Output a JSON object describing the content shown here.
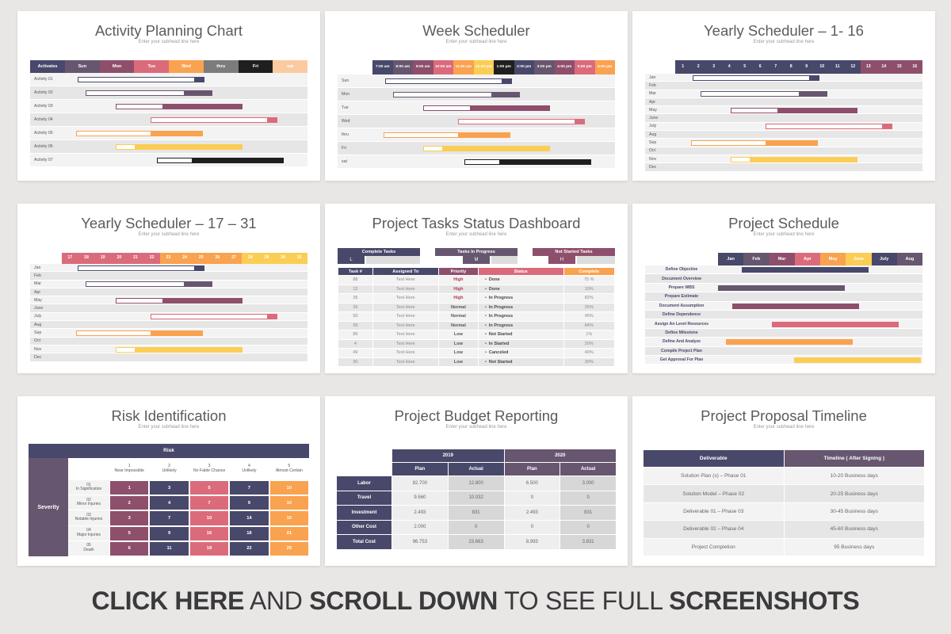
{
  "subhead": "Enter your subhead line here",
  "colors": {
    "navy": "#48486a",
    "purple": "#67566f",
    "plum": "#8e4f6c",
    "pink": "#db6b7b",
    "orange": "#f9a24f",
    "yellow": "#fbcd55",
    "peach": "#fccaa0",
    "gray": "#7c7c7c",
    "black": "#1f1f1f"
  },
  "s1": {
    "title": "Activity Planning Chart",
    "header": [
      "Activates",
      "Sun",
      "Mon",
      "Tue",
      "Wed",
      "thru",
      "Fri",
      "sat"
    ],
    "rows": [
      "Activity 01",
      "Activity 02",
      "Activity 03",
      "Activity 04",
      "Activity 05",
      "Activity 06",
      "Activity 07"
    ]
  },
  "s2": {
    "title": "Week Scheduler",
    "header": [
      "7:00 am",
      "8:00 am",
      "9:00 am",
      "10:00 am",
      "11:00 am",
      "12:00 pm",
      "1:00 pm",
      "2:00 pm",
      "3:00 pm",
      "4:00 pm",
      "5:00 pm",
      "6:00 pm"
    ],
    "rows": [
      "Sun",
      "Mon",
      "Tue",
      "Wed",
      "thru",
      "Fri",
      "sat"
    ]
  },
  "s3": {
    "title": "Yearly Scheduler – 1- 16",
    "header": [
      "1",
      "2",
      "3",
      "4",
      "5",
      "6",
      "7",
      "8",
      "9",
      "10",
      "11",
      "12",
      "13",
      "14",
      "15",
      "16"
    ],
    "rows": [
      "Jan",
      "Feb",
      "Mar",
      "Apr",
      "May",
      "June",
      "July",
      "Aug",
      "Sep",
      "Oct",
      "Nov",
      "Dec"
    ]
  },
  "s4": {
    "title": "Yearly Scheduler – 17 – 31",
    "header": [
      "17",
      "18",
      "19",
      "20",
      "21",
      "22",
      "23",
      "24",
      "25",
      "26",
      "27",
      "28",
      "29",
      "30",
      "31"
    ],
    "rows": [
      "Jan",
      "Feb",
      "Mar",
      "Apr",
      "May",
      "June",
      "July",
      "Aug",
      "Sep",
      "Oct",
      "Nov",
      "Dec"
    ]
  },
  "s5": {
    "title": "Project Tasks Status Dashboard",
    "summary": [
      {
        "label": "Complete Tasks",
        "value": "L"
      },
      {
        "label": "Tasks In Progress",
        "value": "M"
      },
      {
        "label": "Not Started Tasks",
        "value": "H"
      }
    ],
    "columns": [
      "Task #",
      "Assigned To",
      "Priority",
      "Status",
      "Complete"
    ],
    "rows": [
      [
        "88",
        "Text Here",
        "High",
        "Done",
        "75 %"
      ],
      [
        "12",
        "Text Here",
        "High",
        "Done",
        "10%"
      ],
      [
        "35",
        "Text Here",
        "High",
        "In Progress",
        "82%"
      ],
      [
        "39",
        "Text Here",
        "Normal",
        "In Progress",
        "25%"
      ],
      [
        "50",
        "Text Here",
        "Normal",
        "In Progress",
        "45%"
      ],
      [
        "99",
        "Text Here",
        "Normal",
        "In Progress",
        "84%"
      ],
      [
        "89",
        "Text Here",
        "Low",
        "Not Started",
        "1%"
      ],
      [
        "4",
        "Text Here",
        "Low",
        "In Started",
        "20%"
      ],
      [
        "49",
        "Text Here",
        "Low",
        "Canceled",
        "40%"
      ],
      [
        "30",
        "Text Here",
        "Low",
        "Not Started",
        "30%"
      ]
    ]
  },
  "s6": {
    "title": "Project Schedule",
    "header": [
      "Jan",
      "Feb",
      "Mar",
      "Apr",
      "May",
      "June",
      "July",
      "Aug"
    ],
    "rows": [
      "Define Objective",
      "Document Overview",
      "Prepare WBS",
      "Prepare Estimate",
      "Document Assumption",
      "Define Dependence",
      "Assign An Level Resources",
      "Define Milestone",
      "Define And Analyze",
      "Compile Project Plan",
      "Get Approval For Plan"
    ]
  },
  "s7": {
    "title": "Risk Identification",
    "risk_label": "Risk",
    "severity_label": "Severity",
    "likelihood": [
      {
        "n": "1",
        "t": "Near Impossible"
      },
      {
        "n": "2",
        "t": "Unlikely"
      },
      {
        "n": "3",
        "t": "No Fable Chance"
      },
      {
        "n": "4",
        "t": "Unlikely"
      },
      {
        "n": "5",
        "t": "Almost Certain"
      }
    ],
    "severity": [
      {
        "n": "01",
        "t": "In Signification"
      },
      {
        "n": "02",
        "t": "Minor Injuries"
      },
      {
        "n": "03",
        "t": "Notable Injuries"
      },
      {
        "n": "04",
        "t": "Major Injuries"
      },
      {
        "n": "05",
        "t": "Death"
      }
    ],
    "grid": [
      [
        "1",
        "3",
        "5",
        "7",
        "10"
      ],
      [
        "2",
        "4",
        "7",
        "9",
        "10"
      ],
      [
        "3",
        "7",
        "10",
        "14",
        "15"
      ],
      [
        "5",
        "9",
        "16",
        "18",
        "21"
      ],
      [
        "6",
        "11",
        "18",
        "22",
        "25"
      ]
    ]
  },
  "s8": {
    "title": "Project Budget Reporting",
    "years": [
      "2019",
      "2020"
    ],
    "sub": [
      "Plan",
      "Actual",
      "Plan",
      "Actual"
    ],
    "rows": [
      {
        "label": "Labor",
        "v": [
          "82.700",
          "12.800",
          "6.500",
          "3.000"
        ]
      },
      {
        "label": "Travel",
        "v": [
          "9.560",
          "10.032",
          "0",
          "0"
        ]
      },
      {
        "label": "Investment",
        "v": [
          "2.493",
          "831",
          "2.493",
          "831"
        ]
      },
      {
        "label": "Other Cost",
        "v": [
          "2.000",
          "0",
          "0",
          "0"
        ]
      },
      {
        "label": "Total Cost",
        "v": [
          "96.753",
          "23.663",
          "8.993",
          "3.831"
        ]
      }
    ]
  },
  "s9": {
    "title": "Project Proposal Timeline",
    "columns": [
      "Deliverable",
      "Timeline ( After Signing )"
    ],
    "rows": [
      [
        "Solution Plan (s) – Phase 01",
        "10-20 Business days"
      ],
      [
        "Solution Model – Phase 02",
        "20-25 Business days"
      ],
      [
        "Deliverable 01 – Phase 03",
        "30-45 Business days"
      ],
      [
        "Deliverable 02 – Phase 04",
        "45-60 Business days"
      ],
      [
        "Project Completion",
        "95 Business days"
      ]
    ]
  },
  "footer": {
    "a": "CLICK HERE",
    "b": " AND ",
    "c": "SCROLL DOWN",
    "d": " TO SEE FULL ",
    "e": "SCREENSHOTS"
  }
}
